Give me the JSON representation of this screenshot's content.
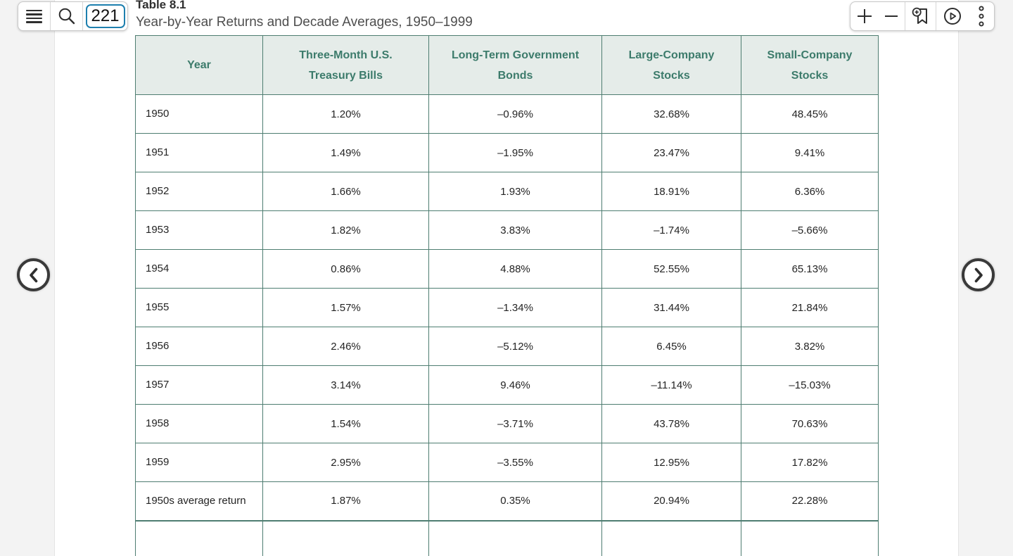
{
  "app": {
    "toolbar_left": {
      "menu_icon": "hamburger-icon",
      "search_icon": "magnifier-icon",
      "page_input_value": "221"
    },
    "toolbar_right": {
      "zoom_in_icon": "plus-icon",
      "zoom_out_icon": "minus-icon",
      "bookmark_add_icon": "bookmark-add-icon",
      "play_icon": "play-circle-icon",
      "more_icon": "kebab-menu-icon"
    },
    "nav": {
      "prev_icon": "chevron-left-icon",
      "next_icon": "chevron-right-icon"
    }
  },
  "doc": {
    "table_label": "Table 8.1",
    "table_caption": "Year-by-Year Returns and Decade Averages, 1950–1999"
  },
  "table": {
    "columns": [
      "Year",
      "Three-Month U.S. Treasury Bills",
      "Long-Term Government Bonds",
      "Large-Company Stocks",
      "Small-Company Stocks"
    ],
    "rows": [
      {
        "type": "year",
        "year": "1950",
        "values": [
          "1.20%",
          "–0.96%",
          "32.68%",
          "48.45%"
        ]
      },
      {
        "type": "year",
        "year": "1951",
        "values": [
          "1.49%",
          "–1.95%",
          "23.47%",
          "9.41%"
        ]
      },
      {
        "type": "year",
        "year": "1952",
        "values": [
          "1.66%",
          "1.93%",
          "18.91%",
          "6.36%"
        ]
      },
      {
        "type": "year",
        "year": "1953",
        "values": [
          "1.82%",
          "3.83%",
          "–1.74%",
          "–5.66%"
        ]
      },
      {
        "type": "year",
        "year": "1954",
        "values": [
          "0.86%",
          "4.88%",
          "52.55%",
          "65.13%"
        ]
      },
      {
        "type": "year",
        "year": "1955",
        "values": [
          "1.57%",
          "–1.34%",
          "31.44%",
          "21.84%"
        ]
      },
      {
        "type": "year",
        "year": "1956",
        "values": [
          "2.46%",
          "–5.12%",
          "6.45%",
          "3.82%"
        ]
      },
      {
        "type": "year",
        "year": "1957",
        "values": [
          "3.14%",
          "9.46%",
          "–11.14%",
          "–15.03%"
        ]
      },
      {
        "type": "year",
        "year": "1958",
        "values": [
          "1.54%",
          "–3.71%",
          "43.78%",
          "70.63%"
        ]
      },
      {
        "type": "year",
        "year": "1959",
        "values": [
          "2.95%",
          "–3.55%",
          "12.95%",
          "17.82%"
        ]
      },
      {
        "type": "average",
        "year": "1950s average return",
        "values": [
          "1.87%",
          "0.35%",
          "20.94%",
          "22.28%"
        ]
      }
    ],
    "partial_next_row": true
  },
  "colors": {
    "header_bg": "#e5ece9",
    "header_text": "#3c7b6b",
    "table_border": "#4e7d71",
    "page_input_border": "#1d7fae",
    "icon": "#2e2e2e",
    "gutter_bg": "#f3f3f3"
  }
}
